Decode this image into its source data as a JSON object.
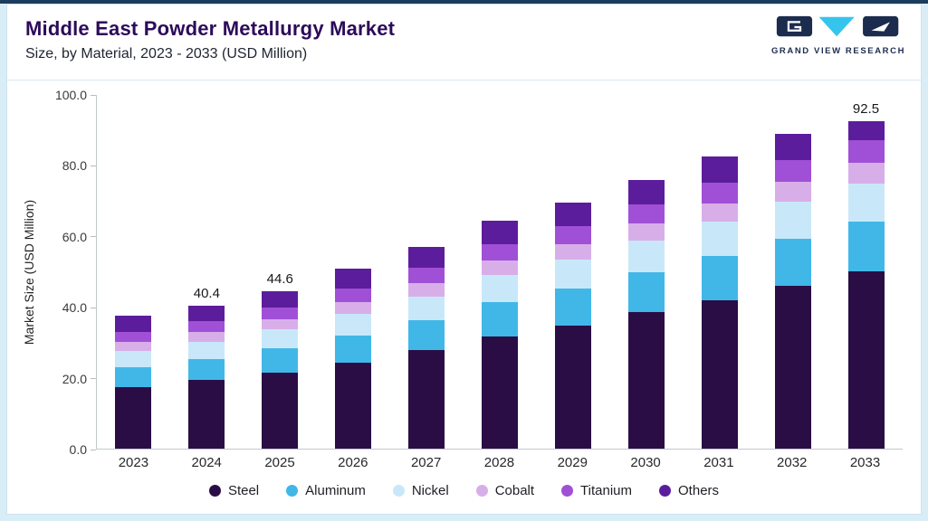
{
  "header": {
    "title": "Middle East Powder Metallurgy Market",
    "subtitle": "Size, by Material, 2023 - 2033 (USD Million)",
    "logo_text": "GRAND VIEW RESEARCH"
  },
  "colors": {
    "title": "#2d0a5a",
    "accent_line": "#1b3c5d",
    "frame": "#d9edf6",
    "logo_navy": "#1b2c4f",
    "logo_cyan": "#35c5ec"
  },
  "chart_data": {
    "type": "bar",
    "stacked": true,
    "title": "Middle East Powder Metallurgy Market Size, by Material, 2023 - 2033 (USD Million)",
    "xlabel": "",
    "ylabel": "Market Size (USD Million)",
    "ylim": [
      0,
      100
    ],
    "yticks": [
      "0.0",
      "20.0",
      "40.0",
      "60.0",
      "80.0",
      "100.0"
    ],
    "grid": false,
    "legend_position": "bottom",
    "categories": [
      "2023",
      "2024",
      "2025",
      "2026",
      "2027",
      "2028",
      "2029",
      "2030",
      "2031",
      "2032",
      "2033"
    ],
    "series": [
      {
        "name": "Steel",
        "color": "#2a0d45",
        "values": [
          17.5,
          19.4,
          21.6,
          24.4,
          27.8,
          31.8,
          34.8,
          38.5,
          42.0,
          46.0,
          50.2
        ]
      },
      {
        "name": "Aluminum",
        "color": "#41b7e8",
        "values": [
          5.6,
          6.0,
          6.7,
          7.6,
          8.5,
          9.6,
          10.4,
          11.4,
          12.4,
          13.4,
          14.0
        ]
      },
      {
        "name": "Nickel",
        "color": "#c8e8f9",
        "values": [
          4.6,
          4.9,
          5.4,
          6.1,
          6.8,
          7.6,
          8.2,
          8.9,
          9.7,
          10.4,
          10.8
        ]
      },
      {
        "name": "Cobalt",
        "color": "#d8aee9",
        "values": [
          2.4,
          2.6,
          2.9,
          3.3,
          3.7,
          4.1,
          4.5,
          4.9,
          5.3,
          5.7,
          5.9
        ]
      },
      {
        "name": "Titanium",
        "color": "#a050d6",
        "values": [
          2.9,
          3.1,
          3.4,
          3.9,
          4.3,
          4.7,
          5.0,
          5.4,
          5.8,
          6.2,
          6.4
        ]
      },
      {
        "name": "Others",
        "color": "#5c1d9c",
        "values": [
          4.5,
          4.4,
          4.6,
          5.5,
          5.9,
          6.6,
          6.8,
          6.9,
          7.3,
          7.3,
          5.2
        ]
      }
    ],
    "totals": [
      37.5,
      40.4,
      44.6,
      50.8,
      57.0,
      64.4,
      69.7,
      76.0,
      82.5,
      89.0,
      92.5
    ],
    "bar_labels": [
      "",
      "40.4",
      "44.6",
      "",
      "",
      "",
      "",
      "",
      "",
      "",
      "92.5"
    ]
  }
}
